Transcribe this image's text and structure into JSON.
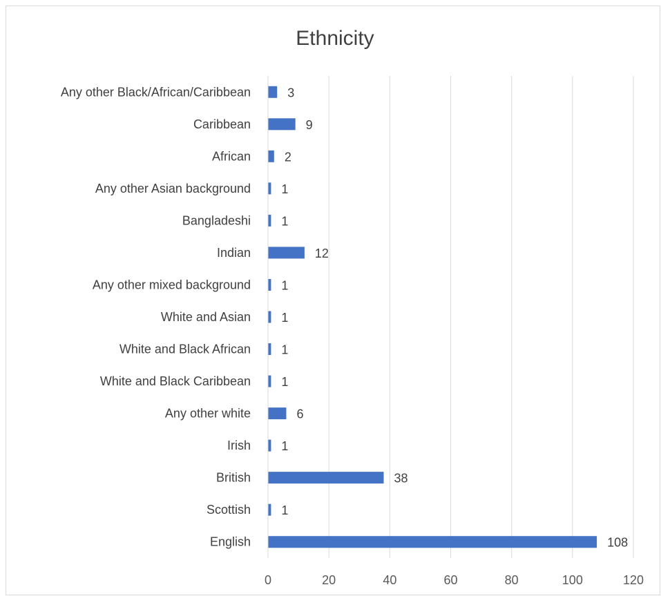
{
  "chart_data": {
    "type": "bar",
    "orientation": "horizontal",
    "title": "Ethnicity",
    "categories": [
      "Any other Black/African/Caribbean",
      "Caribbean",
      "African",
      "Any other Asian background",
      "Bangladeshi",
      "Indian",
      "Any other mixed background",
      "White and Asian",
      "White and Black African",
      "White and Black Caribbean",
      "Any other white",
      "Irish",
      "British",
      "Scottish",
      "English"
    ],
    "values": [
      3,
      9,
      2,
      1,
      1,
      12,
      1,
      1,
      1,
      1,
      6,
      1,
      38,
      1,
      108
    ],
    "xlim": [
      0,
      120
    ],
    "xticks": [
      0,
      20,
      40,
      60,
      80,
      100,
      120
    ],
    "grid": "vertical",
    "data_labels": true,
    "bar_color": "#4472C4"
  }
}
